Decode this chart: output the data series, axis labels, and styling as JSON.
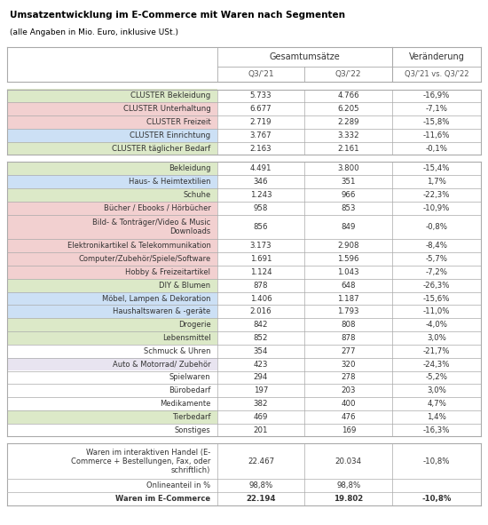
{
  "title": "Umsatzentwicklung im E-Commerce mit Waren nach Segmenten",
  "subtitle": "(alle Angaben in Mio. Euro, inklusive USt.)",
  "cluster_rows": [
    {
      "label": "CLUSTER Bekleidung",
      "q321": "5.733",
      "q322": "4.766",
      "change": "-16,9%",
      "bg": "#dce9c8"
    },
    {
      "label": "CLUSTER Unterhaltung",
      "q321": "6.677",
      "q322": "6.205",
      "change": "-7,1%",
      "bg": "#f2d0d0"
    },
    {
      "label": "CLUSTER Freizeit",
      "q321": "2.719",
      "q322": "2.289",
      "change": "-15,8%",
      "bg": "#f2d0d0"
    },
    {
      "label": "CLUSTER Einrichtung",
      "q321": "3.767",
      "q322": "3.332",
      "change": "-11,6%",
      "bg": "#cce0f5"
    },
    {
      "label": "CLUSTER täglicher Bedarf",
      "q321": "2.163",
      "q322": "2.161",
      "change": "-0,1%",
      "bg": "#dce9c8"
    }
  ],
  "detail_rows": [
    {
      "label": "Bekleidung",
      "q321": "4.491",
      "q322": "3.800",
      "change": "-15,4%",
      "bg": "#dce9c8",
      "multiline": false
    },
    {
      "label": "Haus- & Heimtextilien",
      "q321": "346",
      "q322": "351",
      "change": "1,7%",
      "bg": "#cce0f5",
      "multiline": false
    },
    {
      "label": "Schuhe",
      "q321": "1.243",
      "q322": "966",
      "change": "-22,3%",
      "bg": "#dce9c8",
      "multiline": false
    },
    {
      "label": "Bücher / Ebooks / Hörbücher",
      "q321": "958",
      "q322": "853",
      "change": "-10,9%",
      "bg": "#f2d0d0",
      "multiline": false
    },
    {
      "label": "Bild- & Tonträger/Video & Music\nDownloads",
      "q321": "856",
      "q322": "849",
      "change": "-0,8%",
      "bg": "#f2d0d0",
      "multiline": true
    },
    {
      "label": "Elektronikartikel & Telekommunikation",
      "q321": "3.173",
      "q322": "2.908",
      "change": "-8,4%",
      "bg": "#f2d0d0",
      "multiline": false
    },
    {
      "label": "Computer/Zubehör/Spiele/Software",
      "q321": "1.691",
      "q322": "1.596",
      "change": "-5,7%",
      "bg": "#f2d0d0",
      "multiline": false
    },
    {
      "label": "Hobby & Freizeitartikel",
      "q321": "1.124",
      "q322": "1.043",
      "change": "-7,2%",
      "bg": "#f2d0d0",
      "multiline": false
    },
    {
      "label": "DIY & Blumen",
      "q321": "878",
      "q322": "648",
      "change": "-26,3%",
      "bg": "#dce9c8",
      "multiline": false
    },
    {
      "label": "Möbel, Lampen & Dekoration",
      "q321": "1.406",
      "q322": "1.187",
      "change": "-15,6%",
      "bg": "#cce0f5",
      "multiline": false
    },
    {
      "label": "Haushaltswaren & -geräte",
      "q321": "2.016",
      "q322": "1.793",
      "change": "-11,0%",
      "bg": "#cce0f5",
      "multiline": false
    },
    {
      "label": "Drogerie",
      "q321": "842",
      "q322": "808",
      "change": "-4,0%",
      "bg": "#dce9c8",
      "multiline": false
    },
    {
      "label": "Lebensmittel",
      "q321": "852",
      "q322": "878",
      "change": "3,0%",
      "bg": "#dce9c8",
      "multiline": false
    },
    {
      "label": "Schmuck & Uhren",
      "q321": "354",
      "q322": "277",
      "change": "-21,7%",
      "bg": "#ffffff",
      "multiline": false
    },
    {
      "label": "Auto & Motorrad/ Zubehör",
      "q321": "423",
      "q322": "320",
      "change": "-24,3%",
      "bg": "#e8e4f0",
      "multiline": false
    },
    {
      "label": "Spielwaren",
      "q321": "294",
      "q322": "278",
      "change": "-5,2%",
      "bg": "#ffffff",
      "multiline": false
    },
    {
      "label": "Bürobedarf",
      "q321": "197",
      "q322": "203",
      "change": "3,0%",
      "bg": "#ffffff",
      "multiline": false
    },
    {
      "label": "Medikamente",
      "q321": "382",
      "q322": "400",
      "change": "4,7%",
      "bg": "#ffffff",
      "multiline": false
    },
    {
      "label": "Tierbedarf",
      "q321": "469",
      "q322": "476",
      "change": "1,4%",
      "bg": "#dce9c8",
      "multiline": false
    },
    {
      "label": "Sonstiges",
      "q321": "201",
      "q322": "169",
      "change": "-16,3%",
      "bg": "#ffffff",
      "multiline": false
    }
  ],
  "footer_rows": [
    {
      "label": "Waren im interaktiven Handel (E-\nCommerce + Bestellungen, Fax, oder\nschriftlich)",
      "q321": "22.467",
      "q322": "20.034",
      "change": "-10,8%",
      "bold": false,
      "multiline": true
    },
    {
      "label": "Onlineanteil in %",
      "q321": "98,8%",
      "q322": "98,8%",
      "change": "",
      "bold": false,
      "multiline": false
    },
    {
      "label": "Waren im E-Commerce",
      "q321": "22.194",
      "q322": "19.802",
      "change": "-10,8%",
      "bold": true,
      "multiline": false
    }
  ],
  "ec": "#aaaaaa",
  "lw": 0.6
}
